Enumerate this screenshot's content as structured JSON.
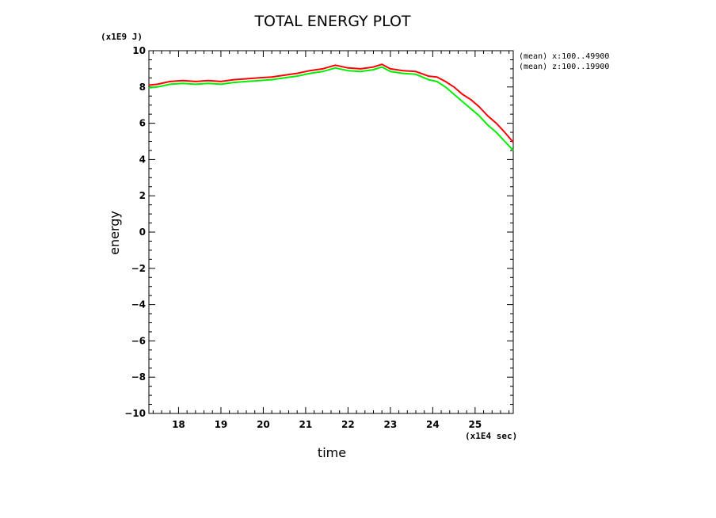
{
  "chart_data": {
    "type": "line",
    "title": "TOTAL ENERGY PLOT",
    "xlabel": "time",
    "ylabel": "energy",
    "x_unit": "(x1E4 sec)",
    "y_unit": "(x1E9 J)",
    "xlim": [
      17.3,
      25.9
    ],
    "ylim": [
      -10,
      10
    ],
    "x_ticks": [
      18,
      19,
      20,
      21,
      22,
      23,
      24,
      25
    ],
    "y_ticks": [
      10,
      8,
      6,
      4,
      2,
      0,
      -2,
      -4,
      -6,
      -8,
      -10
    ],
    "y_tick_labels": [
      "10",
      "8",
      "6",
      "4",
      "2",
      "0",
      "−2",
      "−4",
      "−6",
      "−8",
      "−10"
    ],
    "x": [
      17.3,
      17.5,
      17.8,
      18.1,
      18.4,
      18.7,
      19.0,
      19.3,
      19.6,
      19.9,
      20.2,
      20.5,
      20.8,
      21.1,
      21.4,
      21.7,
      22.0,
      22.3,
      22.6,
      22.8,
      23.0,
      23.3,
      23.6,
      23.9,
      24.1,
      24.3,
      24.5,
      24.7,
      24.9,
      25.1,
      25.3,
      25.5,
      25.7,
      25.9
    ],
    "series": [
      {
        "name": "(mean) x:100..49900",
        "color": "#ff0000",
        "values": [
          8.1,
          8.15,
          8.3,
          8.35,
          8.3,
          8.35,
          8.3,
          8.4,
          8.45,
          8.5,
          8.55,
          8.65,
          8.75,
          8.9,
          9.0,
          9.2,
          9.05,
          9.0,
          9.1,
          9.25,
          9.0,
          8.9,
          8.85,
          8.6,
          8.55,
          8.3,
          8.0,
          7.6,
          7.3,
          6.9,
          6.4,
          6.0,
          5.5,
          4.95
        ]
      },
      {
        "name": "(mean) z:100..19900",
        "color": "#00ee00",
        "values": [
          7.95,
          8.0,
          8.15,
          8.2,
          8.15,
          8.2,
          8.15,
          8.25,
          8.3,
          8.35,
          8.4,
          8.5,
          8.6,
          8.75,
          8.85,
          9.05,
          8.9,
          8.85,
          8.95,
          9.1,
          8.85,
          8.75,
          8.7,
          8.4,
          8.3,
          8.0,
          7.6,
          7.2,
          6.8,
          6.4,
          5.9,
          5.5,
          5.0,
          4.5
        ]
      }
    ]
  }
}
